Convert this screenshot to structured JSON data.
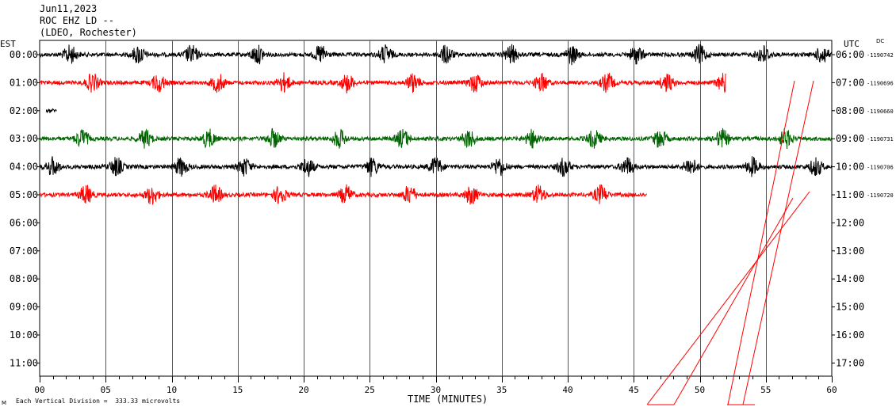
{
  "header": {
    "date": "Jun11,2023",
    "station": "ROC EHZ LD --",
    "network": "(LDEO, Rochester)"
  },
  "left_axis_title": "EST",
  "right_axis_title": "UTC",
  "dc_label": "DC",
  "footer_text": "Each Vertical Division =  333.33 microvolts",
  "corner_mark": "M",
  "chart_data": {
    "type": "line",
    "title": "ROC EHZ LD --",
    "xlabel": "TIME (MINUTES)",
    "xlim": [
      0,
      60
    ],
    "x_ticks": [
      "00",
      "05",
      "10",
      "15",
      "20",
      "25",
      "30",
      "35",
      "40",
      "45",
      "50",
      "55",
      "60"
    ],
    "left_labels": [
      "00:00",
      "01:00",
      "02:00",
      "03:00",
      "04:00",
      "05:00",
      "06:00",
      "07:00",
      "08:00",
      "09:00",
      "10:00",
      "11:00"
    ],
    "right_labels": [
      "06:00",
      "07:00",
      "08:00",
      "09:00",
      "10:00",
      "11:00",
      "12:00",
      "13:00",
      "14:00",
      "15:00",
      "16:00",
      "17:00"
    ],
    "grid": true,
    "traces": [
      {
        "row": 0,
        "color": "#000000",
        "start": 0,
        "end": 60,
        "dc": "-1190742",
        "bursts": [
          2.3,
          7.5,
          11.5,
          16.5,
          21.3,
          26.2,
          30.8,
          35.7,
          40.3,
          45.2,
          50,
          54.8,
          59.3
        ]
      },
      {
        "row": 1,
        "color": "#ff0000",
        "start": 0,
        "end": 52,
        "dc": "-1190696",
        "bursts": [
          4,
          9,
          13.5,
          18.5,
          23.3,
          28.3,
          33,
          38,
          43,
          47.5,
          51.8,
          57.5
        ]
      },
      {
        "row": 2,
        "color": "#000000",
        "start": 0.5,
        "end": 1.3,
        "dc": "-1190660",
        "bursts": []
      },
      {
        "row": 3,
        "color": "#006400",
        "start": 0,
        "end": 60,
        "dc": "-1190731",
        "bursts": [
          3.2,
          8,
          12.8,
          17.7,
          22.7,
          27.5,
          32.5,
          37.3,
          42,
          47,
          51.7,
          56.5
        ]
      },
      {
        "row": 4,
        "color": "#000000",
        "start": 0,
        "end": 60,
        "dc": "-1190706",
        "bursts": [
          1,
          5.8,
          10.7,
          15.5,
          20.3,
          25.2,
          30,
          34.8,
          39.7,
          44.5,
          49.3,
          54,
          58.8
        ]
      },
      {
        "row": 5,
        "color": "#ff0000",
        "start": 0,
        "end": 46,
        "dc": "-1190720",
        "bursts": [
          3.5,
          8.5,
          13.3,
          18.2,
          23.2,
          28,
          32.7,
          37.8,
          42.5,
          57.5
        ]
      }
    ]
  }
}
